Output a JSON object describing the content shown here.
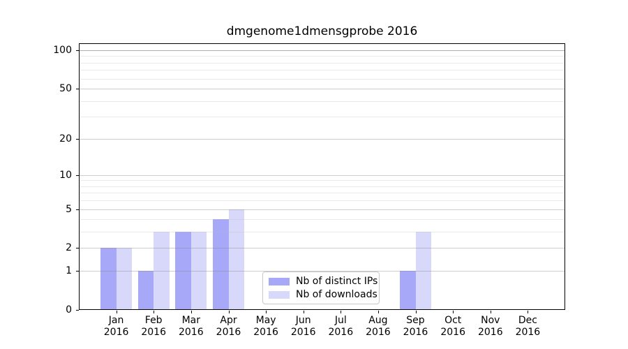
{
  "title": "dmgenome1dmensgprobe 2016",
  "chart_data": {
    "type": "bar",
    "title": "dmgenome1dmensgprobe 2016",
    "months": [
      "Jan",
      "Feb",
      "Mar",
      "Apr",
      "May",
      "Jun",
      "Jul",
      "Aug",
      "Sep",
      "Oct",
      "Nov",
      "Dec"
    ],
    "year": "2016",
    "series": [
      {
        "name": "Nb of distinct IPs",
        "color": "#a8a8f8",
        "values": [
          2,
          1,
          3,
          4,
          0,
          0,
          0,
          0,
          1,
          0,
          0,
          0
        ]
      },
      {
        "name": "Nb of downloads",
        "color": "#d8d8fa",
        "values": [
          2,
          3,
          3,
          5,
          0,
          0,
          0,
          0,
          3,
          0,
          0,
          0
        ]
      }
    ],
    "yscale": "log10(value+1)",
    "major_yticks": [
      0,
      1,
      2,
      5,
      10,
      20,
      50,
      100
    ],
    "minor_yticks": [
      3,
      4,
      6,
      7,
      8,
      9,
      30,
      40,
      60,
      70,
      80,
      90
    ],
    "ylim": [
      0,
      113
    ],
    "grid": "horizontal",
    "legend_position": "lower center"
  },
  "colors": {
    "axis": "#000000",
    "major_grid": "#cdcdcd",
    "grid_100": "#afafaf",
    "minor_grid": "#eaeaea",
    "background": "#ffffff"
  }
}
